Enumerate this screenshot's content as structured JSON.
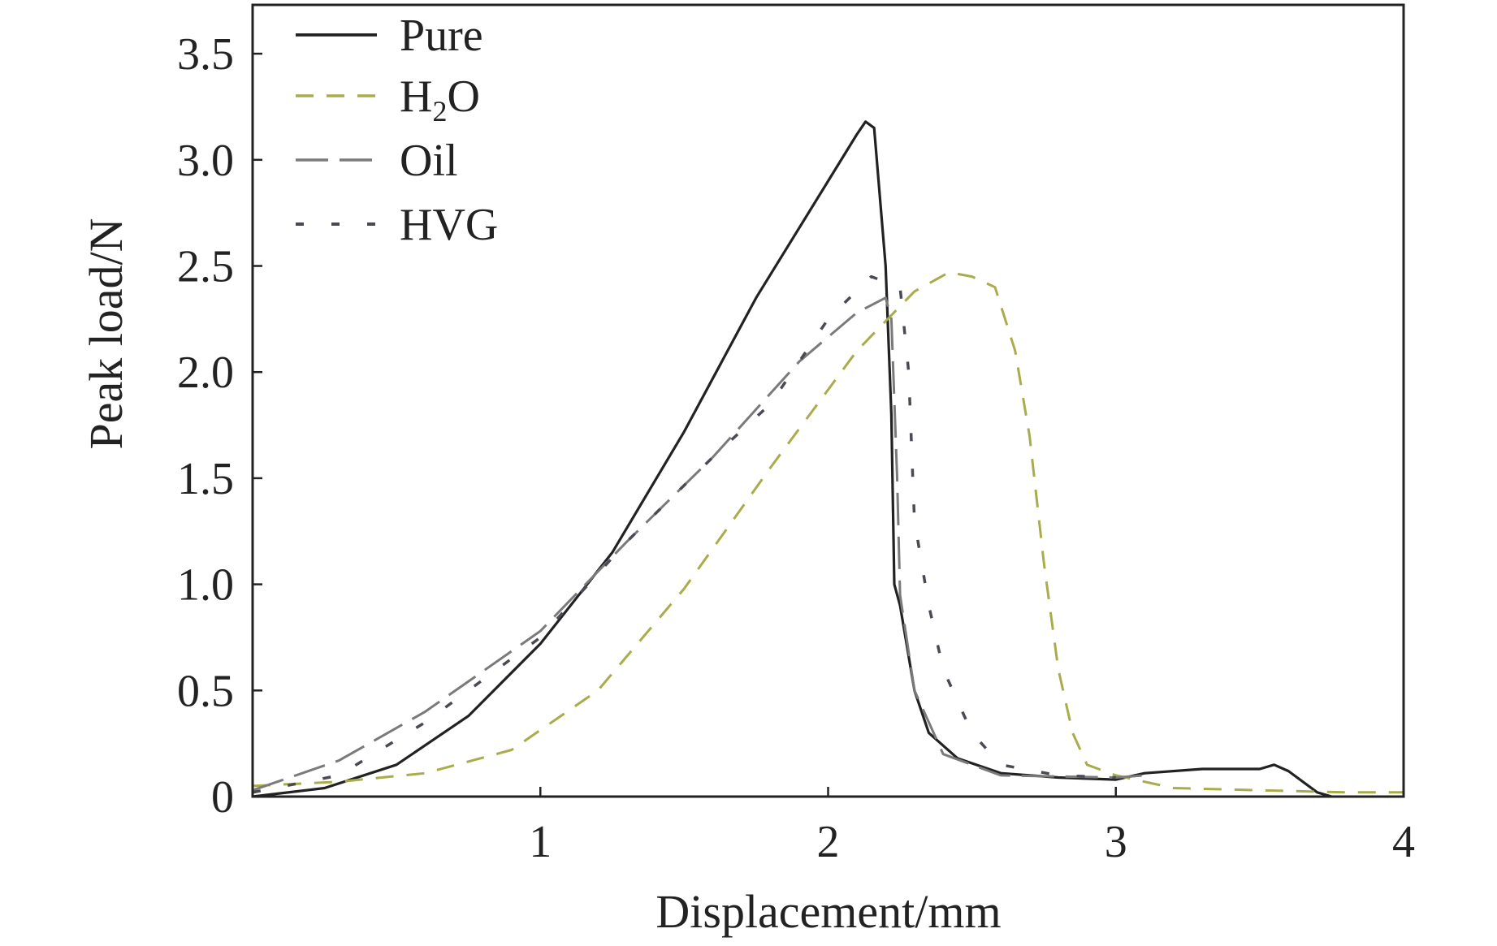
{
  "chart_data": {
    "type": "line",
    "title": "",
    "xlabel": "Displacement/mm",
    "ylabel": "Peak load/N",
    "xlim": [
      0,
      4
    ],
    "ylim": [
      0,
      3.73
    ],
    "xticks": [
      1,
      2,
      3,
      4
    ],
    "xtick_labels": [
      "1",
      "2",
      "3",
      "4"
    ],
    "yticks": [
      0,
      0.5,
      1.0,
      1.5,
      2.0,
      2.5,
      3.0,
      3.5
    ],
    "ytick_labels": [
      "0",
      "0.5",
      "1.0",
      "1.5",
      "2.0",
      "2.5",
      "3.0",
      "3.5"
    ],
    "grid": false,
    "legend": "top-left",
    "series": [
      {
        "name": "Pure",
        "legend_main": "Pure",
        "legend_sub": "",
        "legend_tail": "",
        "color": "#222222",
        "dash": "solid",
        "x": [
          0,
          0.25,
          0.5,
          0.75,
          1.0,
          1.25,
          1.5,
          1.75,
          2.0,
          2.1,
          2.13,
          2.16,
          2.2,
          2.22,
          2.23,
          2.25,
          2.3,
          2.35,
          2.45,
          2.6,
          2.8,
          3.0,
          3.1,
          3.3,
          3.5,
          3.55,
          3.6,
          3.7,
          3.75
        ],
        "y": [
          0,
          0.04,
          0.15,
          0.38,
          0.72,
          1.15,
          1.72,
          2.35,
          2.9,
          3.12,
          3.18,
          3.15,
          2.5,
          1.8,
          1.0,
          0.9,
          0.5,
          0.3,
          0.18,
          0.11,
          0.09,
          0.08,
          0.11,
          0.13,
          0.13,
          0.15,
          0.12,
          0.02,
          0
        ]
      },
      {
        "name": "H2O",
        "legend_main": "H",
        "legend_sub": "2",
        "legend_tail": "O",
        "color": "#a9ac4a",
        "dash": "dashed",
        "x": [
          0,
          0.3,
          0.6,
          0.9,
          1.2,
          1.5,
          1.8,
          2.1,
          2.3,
          2.42,
          2.5,
          2.58,
          2.65,
          2.7,
          2.75,
          2.8,
          2.85,
          2.9,
          3.0,
          3.2,
          3.5,
          3.8,
          4.0
        ],
        "y": [
          0.05,
          0.07,
          0.11,
          0.22,
          0.5,
          0.98,
          1.55,
          2.1,
          2.38,
          2.47,
          2.45,
          2.4,
          2.1,
          1.7,
          1.1,
          0.6,
          0.3,
          0.15,
          0.1,
          0.04,
          0.03,
          0.02,
          0.02
        ]
      },
      {
        "name": "Oil",
        "legend_main": "Oil",
        "legend_sub": "",
        "legend_tail": "",
        "color": "#7a7a7a",
        "dash": "long-dash",
        "x": [
          0,
          0.3,
          0.6,
          1.0,
          1.3,
          1.6,
          1.9,
          2.1,
          2.2,
          2.22,
          2.24,
          2.25,
          2.3,
          2.4,
          2.6,
          3.0,
          3.1
        ],
        "y": [
          0.03,
          0.17,
          0.4,
          0.78,
          1.2,
          1.6,
          2.05,
          2.28,
          2.35,
          2.25,
          1.5,
          0.95,
          0.5,
          0.2,
          0.1,
          0.09,
          0.1
        ]
      },
      {
        "name": "HVG",
        "legend_main": "HVG",
        "legend_sub": "",
        "legend_tail": "",
        "color": "#4a4a55",
        "dash": "dash-dot",
        "x": [
          0,
          0.3,
          0.6,
          1.0,
          1.3,
          1.6,
          1.8,
          2.0,
          2.15,
          2.25,
          2.28,
          2.3,
          2.35,
          2.4,
          2.5,
          2.6,
          2.8,
          3.0
        ],
        "y": [
          0.02,
          0.1,
          0.35,
          0.75,
          1.2,
          1.6,
          1.85,
          2.25,
          2.45,
          2.4,
          2.0,
          1.3,
          0.9,
          0.6,
          0.3,
          0.15,
          0.1,
          0.09
        ]
      }
    ]
  }
}
